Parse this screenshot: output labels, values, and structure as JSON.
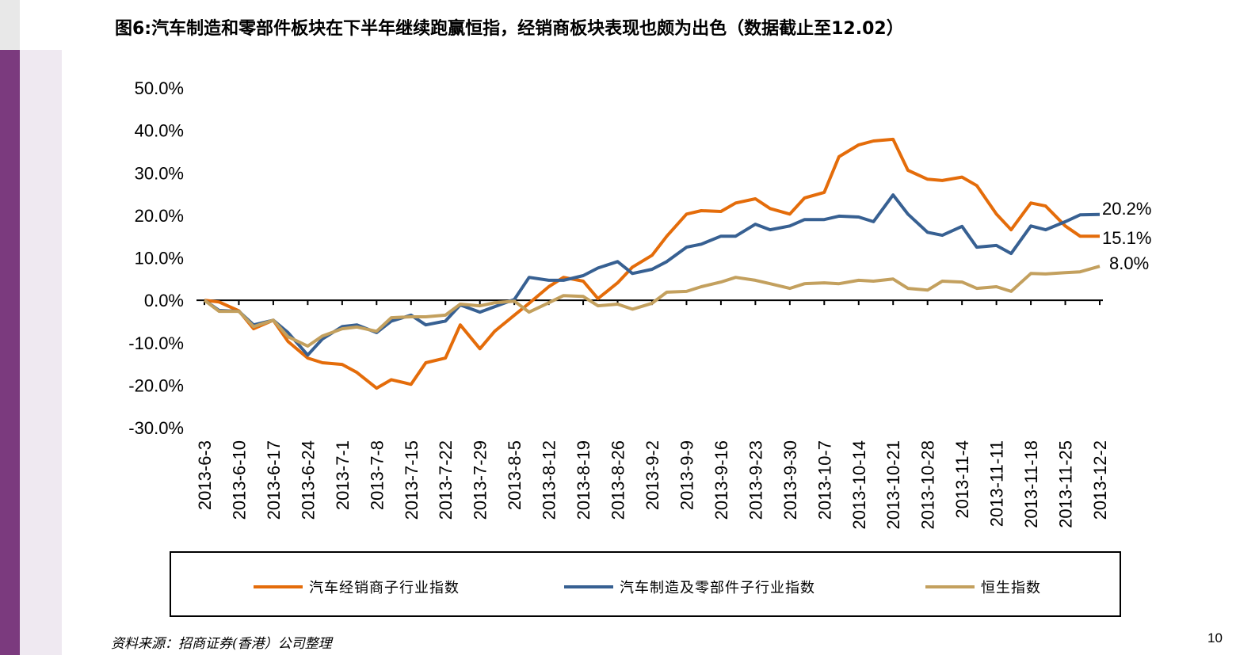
{
  "title": "图6:汽车制造和零部件板块在下半年继续跑赢恒指，经销商板块表现也颇为出色（数据截止至12.02）",
  "source": "资料来源：招商证券(香港）公司整理",
  "page_number": "10",
  "chart_data": {
    "type": "line",
    "title": "",
    "xlabel": "",
    "ylabel": "",
    "ylim": [
      -30,
      50
    ],
    "y_ticks": [
      "50.0%",
      "40.0%",
      "30.0%",
      "20.0%",
      "10.0%",
      "0.0%",
      "-10.0%",
      "-20.0%",
      "-30.0%"
    ],
    "y_tick_values": [
      50,
      40,
      30,
      20,
      10,
      0,
      -10,
      -20,
      -30
    ],
    "x_range": [
      "2013-06-03",
      "2013-12-02"
    ],
    "x_ticks": [
      "2013-6-3",
      "2013-6-10",
      "2013-6-17",
      "2013-6-24",
      "2013-7-1",
      "2013-7-8",
      "2013-7-15",
      "2013-7-22",
      "2013-7-29",
      "2013-8-5",
      "2013-8-12",
      "2013-8-19",
      "2013-8-26",
      "2013-9-2",
      "2013-9-9",
      "2013-9-16",
      "2013-9-23",
      "2013-9-30",
      "2013-10-7",
      "2013-10-14",
      "2013-10-21",
      "2013-10-28",
      "2013-11-4",
      "2013-11-11",
      "2013-11-18",
      "2013-11-25",
      "2013-12-2"
    ],
    "grid": false,
    "legend_position": "bottom",
    "dates": [
      "2013-06-03",
      "2013-06-06",
      "2013-06-10",
      "2013-06-13",
      "2013-06-17",
      "2013-06-20",
      "2013-06-24",
      "2013-06-27",
      "2013-07-01",
      "2013-07-04",
      "2013-07-08",
      "2013-07-11",
      "2013-07-15",
      "2013-07-18",
      "2013-07-22",
      "2013-07-25",
      "2013-07-29",
      "2013-08-01",
      "2013-08-05",
      "2013-08-08",
      "2013-08-12",
      "2013-08-15",
      "2013-08-19",
      "2013-08-22",
      "2013-08-26",
      "2013-08-29",
      "2013-09-02",
      "2013-09-05",
      "2013-09-09",
      "2013-09-12",
      "2013-09-16",
      "2013-09-19",
      "2013-09-23",
      "2013-09-26",
      "2013-09-30",
      "2013-10-03",
      "2013-10-07",
      "2013-10-10",
      "2013-10-14",
      "2013-10-17",
      "2013-10-21",
      "2013-10-24",
      "2013-10-28",
      "2013-10-31",
      "2013-11-04",
      "2013-11-07",
      "2013-11-11",
      "2013-11-14",
      "2013-11-18",
      "2013-11-21",
      "2013-11-25",
      "2013-11-28",
      "2013-12-02"
    ],
    "series": [
      {
        "name": "汽车经销商子行业指数",
        "color": "#E46C0A",
        "end_label": "15.1%",
        "values": [
          0,
          -0.4,
          -2.5,
          -6.7,
          -4.7,
          -9.7,
          -13.6,
          -14.7,
          -15.1,
          -17.0,
          -20.7,
          -18.7,
          -19.8,
          -14.7,
          -13.6,
          -5.8,
          -11.4,
          -7.3,
          -3.5,
          -0.7,
          3.2,
          5.4,
          4.5,
          0.4,
          4.1,
          7.8,
          10.6,
          15.1,
          20.3,
          21.1,
          20.9,
          22.9,
          23.9,
          21.6,
          20.3,
          24.1,
          25.4,
          33.8,
          36.6,
          37.5,
          37.9,
          30.6,
          28.5,
          28.2,
          29.0,
          27.0,
          20.3,
          16.6,
          22.9,
          22.2,
          17.5,
          15.1,
          15.1
        ]
      },
      {
        "name": "汽车制造及零部件子行业指数",
        "color": "#376092",
        "end_label": "20.2%",
        "values": [
          0,
          -2.4,
          -2.6,
          -5.8,
          -4.7,
          -7.6,
          -12.9,
          -9.1,
          -6.2,
          -5.8,
          -7.6,
          -4.9,
          -3.5,
          -5.8,
          -4.9,
          -1.1,
          -2.8,
          -1.5,
          0.2,
          5.4,
          4.7,
          4.7,
          5.8,
          7.6,
          9.1,
          6.3,
          7.3,
          9.1,
          12.5,
          13.2,
          15.1,
          15.1,
          17.9,
          16.6,
          17.5,
          19.0,
          19.0,
          19.8,
          19.6,
          18.5,
          24.8,
          20.3,
          16.0,
          15.3,
          17.4,
          12.5,
          12.9,
          11.0,
          17.5,
          16.6,
          18.5,
          20.1,
          20.2
        ]
      },
      {
        "name": "恒生指数",
        "color": "#C3A05E",
        "end_label": "8.0%",
        "values": [
          0,
          -2.6,
          -2.6,
          -6.2,
          -4.7,
          -8.6,
          -10.8,
          -8.4,
          -6.7,
          -6.3,
          -7.3,
          -4.1,
          -3.9,
          -3.9,
          -3.5,
          -0.9,
          -1.3,
          -0.6,
          -0.2,
          -2.8,
          -0.6,
          1.1,
          0.9,
          -1.3,
          -0.9,
          -2.1,
          -0.7,
          1.9,
          2.1,
          3.2,
          4.3,
          5.4,
          4.7,
          3.9,
          2.8,
          3.9,
          4.1,
          3.9,
          4.7,
          4.5,
          5.0,
          2.8,
          2.4,
          4.5,
          4.3,
          2.8,
          3.2,
          2.1,
          6.3,
          6.2,
          6.5,
          6.7,
          8.0
        ]
      }
    ]
  }
}
